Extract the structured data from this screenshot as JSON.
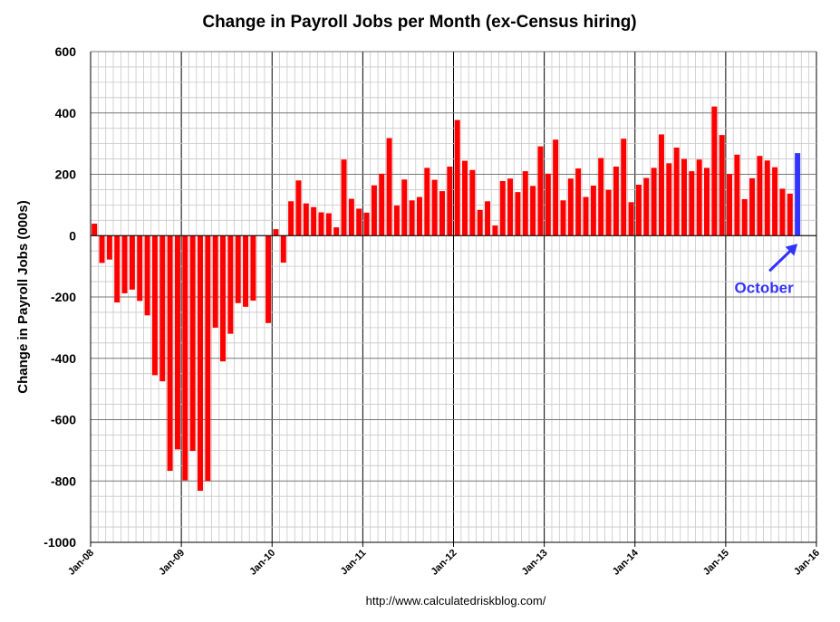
{
  "chart_data": {
    "type": "bar",
    "title": "Change in Payroll Jobs per Month (ex-Census hiring)",
    "xlabel": "",
    "ylabel": "Change in Payroll Jobs (000s)",
    "ylim": [
      -1000,
      600
    ],
    "yticks": [
      "600",
      "400",
      "200",
      "0",
      "-200",
      "-400",
      "-600",
      "-800",
      "-1000"
    ],
    "ytick_values": [
      600,
      400,
      200,
      0,
      -200,
      -400,
      -600,
      -800,
      -1000
    ],
    "xticks": [
      "Jan-08",
      "Jan-09",
      "Jan-10",
      "Jan-11",
      "Jan-12",
      "Jan-13",
      "Jan-14",
      "Jan-15",
      "Jan-16"
    ],
    "x_start": "Jan-08",
    "months_total": 96,
    "grid": true,
    "colors": {
      "bar": "#ff0000",
      "highlight": "#3333ff",
      "annotation": "#3333ff"
    },
    "annotation": {
      "text": "October",
      "target_index": 93
    },
    "source": "http://www.calculatedriskblog.com/",
    "values": [
      39,
      -89,
      -78,
      -218,
      -188,
      -176,
      -213,
      -260,
      -455,
      -475,
      -767,
      -697,
      -798,
      -702,
      -832,
      -800,
      -300,
      -410,
      -320,
      -220,
      -232,
      -212,
      0,
      -285,
      21,
      -88,
      112,
      180,
      105,
      93,
      76,
      73,
      27,
      248,
      120,
      88,
      75,
      164,
      202,
      318,
      98,
      183,
      115,
      126,
      221,
      182,
      145,
      225,
      377,
      244,
      214,
      84,
      112,
      33,
      178,
      186,
      142,
      210,
      162,
      291,
      202,
      313,
      115,
      186,
      219,
      126,
      163,
      253,
      149,
      225,
      316,
      109,
      166,
      188,
      221,
      330,
      236,
      287,
      250,
      210,
      248,
      221,
      421,
      328,
      201,
      264,
      119,
      187,
      260,
      245,
      223,
      153,
      137,
      269
    ]
  }
}
